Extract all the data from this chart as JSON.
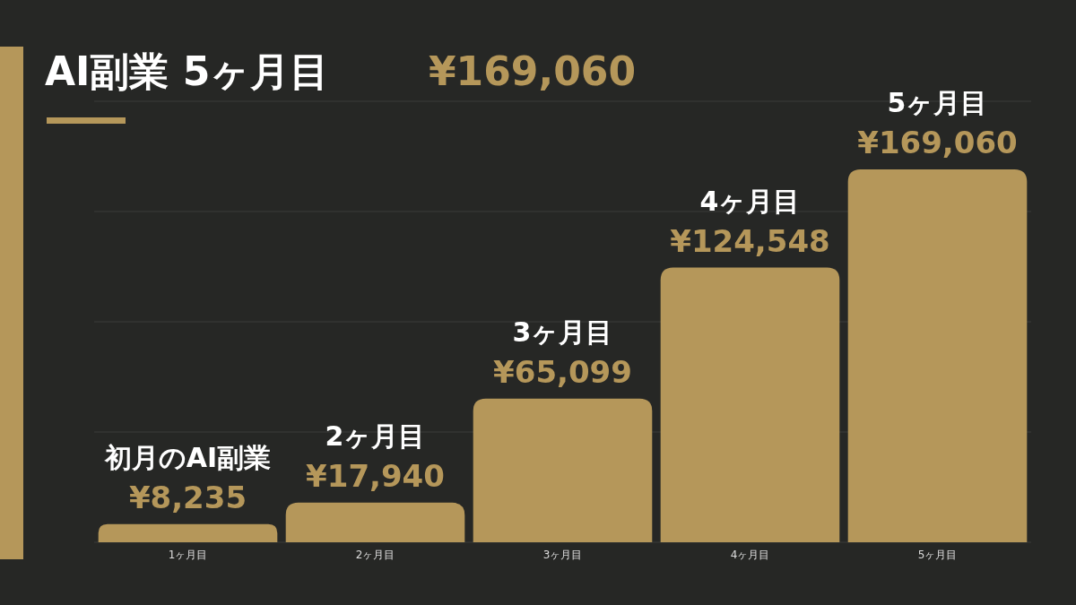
{
  "chart_data": {
    "type": "bar",
    "title": "AI副業 5ヶ月目",
    "subtitle": "¥169,060",
    "categories": [
      "1ヶ月目",
      "2ヶ月目",
      "3ヶ月目",
      "4ヶ月目",
      "5ヶ月目"
    ],
    "values": [
      8235,
      17940,
      65099,
      124548,
      169060
    ],
    "color": "#b5975a",
    "value_labels": [
      "¥8,235",
      "¥17,940",
      "¥65,099",
      "¥124,548",
      "¥169,060"
    ],
    "annotations": [
      {
        "text": "初月のAI副業",
        "x": "1ヶ月目",
        "y": 8235
      },
      {
        "text": "2ヶ月目",
        "x": "2ヶ月目",
        "y": 17940
      },
      {
        "text": "3ヶ月目",
        "x": "3ヶ月目",
        "y": 65099
      },
      {
        "text": "4ヶ月目",
        "x": "4ヶ月目",
        "y": 124548
      },
      {
        "text": "5ヶ月目",
        "x": "5ヶ月目",
        "y": 169060
      }
    ],
    "ylim": [
      0,
      200000
    ],
    "yticks": [
      {
        "value": 0,
        "label": null
      },
      {
        "value": 50000,
        "label": null
      },
      {
        "value": 100000,
        "label": null
      },
      {
        "value": 150000,
        "label": null
      },
      {
        "value": 200000,
        "label": null
      }
    ],
    "grid": "y",
    "tick_labels": "x"
  }
}
